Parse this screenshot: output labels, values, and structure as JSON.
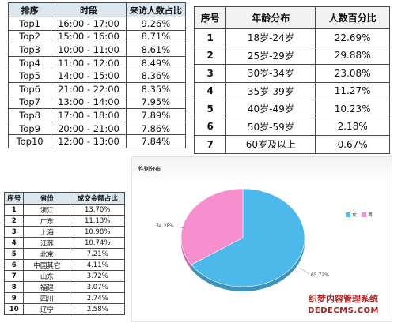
{
  "time_table": {
    "headers": [
      "排序",
      "时段",
      "来访人数占比"
    ],
    "rows": [
      [
        "Top1",
        "16:00 - 17:00",
        "9.26%"
      ],
      [
        "Top2",
        "15:00 - 16:00",
        "8.71%"
      ],
      [
        "Top3",
        "10:00 - 11:00",
        "8.61%"
      ],
      [
        "Top4",
        "11:00 - 12:00",
        "8.49%"
      ],
      [
        "Top5",
        "14:00 - 15:00",
        "8.36%"
      ],
      [
        "Top6",
        "21:00 - 22:00",
        "8.35%"
      ],
      [
        "Top7",
        "13:00 - 14:00",
        "7.95%"
      ],
      [
        "Top8",
        "17:00 - 18:00",
        "7.89%"
      ],
      [
        "Top9",
        "20:00 - 21:00",
        "7.86%"
      ],
      [
        "Top10",
        "12:00 - 13:00",
        "7.84%"
      ]
    ]
  },
  "age_table": {
    "headers": [
      "序号",
      "年龄分布",
      "人数百分比"
    ],
    "rows": [
      [
        "1",
        "18岁-24岁",
        "22.69%"
      ],
      [
        "2",
        "25岁-29岁",
        "29.88%"
      ],
      [
        "3",
        "30岁-34岁",
        "23.08%"
      ],
      [
        "4",
        "35岁-39岁",
        "11.27%"
      ],
      [
        "5",
        "40岁-49岁",
        "10.23%"
      ],
      [
        "6",
        "50岁-59岁",
        "2.18%"
      ],
      [
        "7",
        "60岁及以上",
        "0.67%"
      ]
    ]
  },
  "province_table": {
    "headers": [
      "序号",
      "省份",
      "成交金额占比"
    ],
    "rows": [
      [
        "1",
        "浙江",
        "13.70%"
      ],
      [
        "2",
        "广东",
        "11.13%"
      ],
      [
        "3",
        "上海",
        "10.98%"
      ],
      [
        "4",
        "江苏",
        "10.74%"
      ],
      [
        "5",
        "北京",
        "7.21%"
      ],
      [
        "6",
        "中国其它",
        "4.11%"
      ],
      [
        "7",
        "山东",
        "3.72%"
      ],
      [
        "8",
        "福建",
        "3.07%"
      ],
      [
        "9",
        "四川",
        "2.74%"
      ],
      [
        "10",
        "辽宁",
        "2.58%"
      ]
    ]
  },
  "chart_data": {
    "type": "pie",
    "title": "性别分布",
    "legend_position": "top-right",
    "categories": [
      "女",
      "男"
    ],
    "values": [
      65.72,
      34.28
    ],
    "labels": [
      "65.72%",
      "34.28%"
    ],
    "colors": [
      "#4db8ea",
      "#f78fcf"
    ]
  },
  "watermark": {
    "line1": "织梦内容管理系统",
    "line2": "DEDECMS.COM"
  }
}
